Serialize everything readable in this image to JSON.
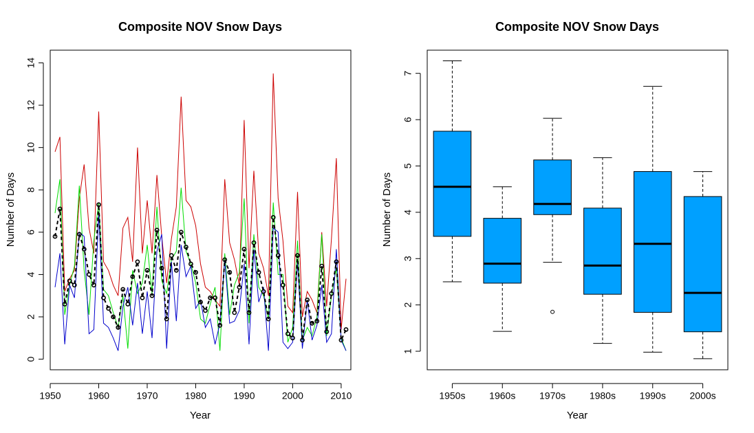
{
  "chart_data": [
    {
      "type": "line",
      "title": "Composite NOV Snow Days",
      "xlabel": "Year",
      "ylabel": "Number of Days",
      "xlim": [
        1950,
        2012
      ],
      "ylim": [
        -0.5,
        14.6
      ],
      "xticks": [
        1950,
        1960,
        1970,
        1980,
        1990,
        2000,
        2010
      ],
      "yticks": [
        0,
        2,
        4,
        6,
        8,
        10,
        12,
        14
      ],
      "x": [
        1951,
        1952,
        1953,
        1954,
        1955,
        1956,
        1957,
        1958,
        1959,
        1960,
        1961,
        1962,
        1963,
        1964,
        1965,
        1966,
        1967,
        1968,
        1969,
        1970,
        1971,
        1972,
        1973,
        1974,
        1975,
        1976,
        1977,
        1978,
        1979,
        1980,
        1981,
        1982,
        1983,
        1984,
        1985,
        1986,
        1987,
        1988,
        1989,
        1990,
        1991,
        1992,
        1993,
        1994,
        1995,
        1996,
        1997,
        1998,
        1999,
        2000,
        2001,
        2002,
        2003,
        2004,
        2005,
        2006,
        2007,
        2008,
        2009,
        2010,
        2011
      ],
      "series": [
        {
          "color": "#cc0000",
          "values": [
            9.8,
            10.5,
            3.2,
            3.8,
            4.2,
            7.6,
            9.2,
            6.2,
            5.0,
            11.7,
            4.6,
            4.2,
            3.5,
            3.0,
            6.2,
            6.7,
            4.6,
            10.0,
            5.0,
            7.5,
            5.0,
            8.7,
            5.8,
            3.6,
            5.7,
            7.2,
            12.4,
            7.5,
            7.2,
            6.3,
            4.5,
            3.4,
            3.2,
            2.8,
            2.5,
            8.5,
            5.5,
            4.7,
            3.5,
            11.3,
            4.3,
            8.9,
            5.0,
            4.3,
            3.0,
            13.5,
            7.6,
            5.6,
            2.5,
            2.2,
            7.9,
            2.0,
            3.2,
            2.8,
            2.2,
            6.0,
            2.5,
            5.7,
            9.5,
            1.4,
            3.8
          ]
        },
        {
          "color": "#00dd00",
          "values": [
            6.9,
            8.5,
            2.1,
            3.5,
            4.4,
            8.2,
            4.2,
            2.1,
            5.6,
            7.4,
            3.3,
            3.0,
            2.2,
            1.5,
            3.0,
            0.5,
            4.2,
            3.1,
            3.6,
            5.4,
            3.1,
            7.2,
            3.7,
            3.1,
            4.7,
            5.1,
            8.1,
            5.1,
            4.5,
            3.6,
            1.9,
            1.7,
            2.6,
            3.4,
            0.4,
            5.0,
            2.1,
            3.5,
            4.1,
            7.6,
            1.7,
            5.9,
            3.4,
            3.0,
            1.9,
            7.4,
            4.0,
            4.0,
            0.8,
            1.5,
            5.6,
            0.9,
            1.5,
            1.1,
            2.0,
            5.9,
            1.1,
            3.0,
            4.3,
            1.0,
            0.4
          ]
        },
        {
          "color": "#0000cc",
          "values": [
            3.4,
            5.0,
            0.7,
            3.5,
            2.9,
            6.0,
            5.8,
            1.2,
            1.4,
            6.9,
            1.7,
            1.5,
            1.0,
            0.4,
            2.5,
            3.4,
            1.6,
            3.6,
            1.2,
            3.2,
            1.0,
            5.1,
            5.9,
            0.5,
            4.6,
            1.8,
            5.4,
            3.9,
            4.4,
            2.4,
            2.8,
            1.5,
            1.9,
            0.7,
            1.7,
            4.7,
            1.7,
            1.8,
            2.3,
            4.5,
            0.7,
            5.2,
            2.7,
            3.4,
            0.4,
            6.2,
            6.0,
            0.8,
            0.5,
            0.8,
            4.6,
            0.5,
            2.8,
            0.9,
            1.6,
            3.5,
            0.8,
            1.2,
            5.2,
            0.9,
            0.4
          ]
        },
        {
          "color": "#000000",
          "values": [
            5.8,
            7.1,
            2.6,
            3.7,
            3.5,
            5.9,
            5.2,
            4.0,
            3.5,
            7.3,
            2.9,
            2.4,
            2.0,
            1.5,
            3.3,
            2.6,
            3.9,
            4.6,
            2.9,
            4.2,
            3.0,
            6.1,
            4.3,
            1.9,
            4.9,
            4.2,
            6.0,
            5.3,
            4.5,
            4.1,
            2.7,
            2.3,
            2.9,
            2.9,
            1.6,
            4.7,
            4.1,
            2.2,
            3.4,
            5.2,
            2.2,
            5.5,
            4.1,
            3.2,
            1.9,
            6.7,
            4.9,
            3.5,
            1.2,
            1.0,
            4.9,
            0.9,
            2.8,
            1.7,
            1.8,
            4.4,
            1.3,
            3.1,
            4.6,
            0.9,
            1.4
          ]
        }
      ]
    },
    {
      "type": "box",
      "title": "Composite NOV Snow Days",
      "xlabel": "Year",
      "ylabel": "Number of Days",
      "ylim": [
        0.6,
        7.5
      ],
      "yticks": [
        1,
        2,
        3,
        4,
        5,
        6,
        7
      ],
      "fill_color": "#00a0ff",
      "categories": [
        "1950s",
        "1960s",
        "1970s",
        "1980s",
        "1990s",
        "2000s"
      ],
      "boxes": [
        {
          "min": 2.5,
          "q1": 3.48,
          "median": 4.55,
          "q3": 5.75,
          "max": 7.27,
          "outliers": []
        },
        {
          "min": 1.43,
          "q1": 2.47,
          "median": 2.89,
          "q3": 3.87,
          "max": 4.55,
          "outliers": []
        },
        {
          "min": 2.92,
          "q1": 3.95,
          "median": 4.18,
          "q3": 5.13,
          "max": 6.03,
          "outliers": [
            1.85
          ]
        },
        {
          "min": 1.17,
          "q1": 2.23,
          "median": 2.85,
          "q3": 4.09,
          "max": 5.18,
          "outliers": []
        },
        {
          "min": 0.98,
          "q1": 1.84,
          "median": 3.32,
          "q3": 4.88,
          "max": 6.72,
          "outliers": []
        },
        {
          "min": 0.84,
          "q1": 1.42,
          "median": 2.26,
          "q3": 4.34,
          "max": 4.88,
          "outliers": []
        }
      ]
    }
  ]
}
